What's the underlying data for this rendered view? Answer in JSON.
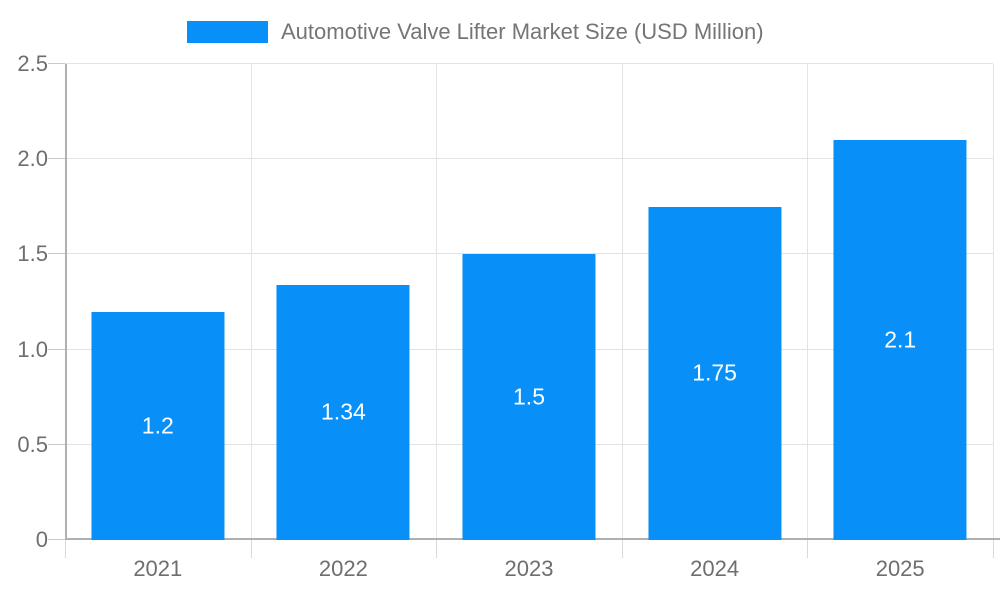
{
  "legend": {
    "label": "Automotive Valve Lifter Market Size (USD Million)"
  },
  "chart_data": {
    "type": "bar",
    "title": "Automotive Valve Lifter Market Size (USD Million)",
    "series_name": "Automotive Valve Lifter Market Size (USD Million)",
    "categories": [
      "2021",
      "2022",
      "2023",
      "2024",
      "2025"
    ],
    "values": [
      1.2,
      1.34,
      1.5,
      1.75,
      2.1
    ],
    "value_labels": [
      "1.2",
      "1.34",
      "1.5",
      "1.75",
      "2.1"
    ],
    "xlabel": "",
    "ylabel": "",
    "ylim": [
      0,
      2.5
    ],
    "ytick_values": [
      0,
      0.5,
      1.0,
      1.5,
      2.0,
      2.5
    ],
    "ytick_labels": [
      "0",
      "0.5",
      "1.0",
      "1.5",
      "2.0",
      "2.5"
    ],
    "grid": true,
    "legend_position": "top",
    "bar_width_fraction": 0.717,
    "colors": {
      "bar": "#0890f8",
      "bar_label": "#ffffff",
      "axis_line": "#b0b0b0",
      "grid_line": "#e3e3e3",
      "tick_line_y": "#c9c9c9",
      "tick_line_x": "#d9d9d9",
      "axis_text": "#6e6e6e",
      "legend_text": "#757575",
      "background": "#ffffff"
    }
  }
}
